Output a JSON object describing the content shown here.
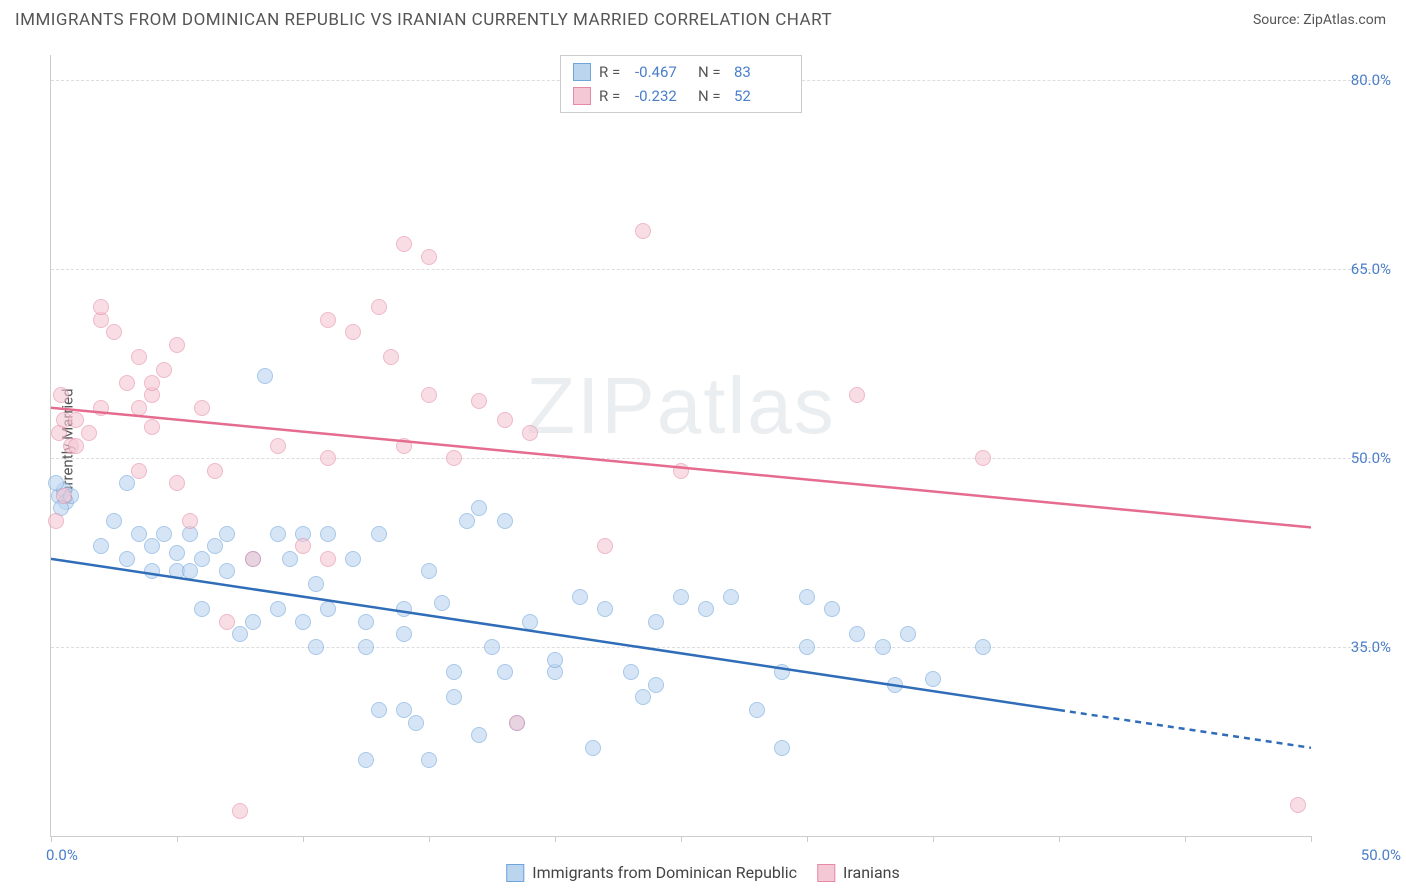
{
  "header": {
    "title": "IMMIGRANTS FROM DOMINICAN REPUBLIC VS IRANIAN CURRENTLY MARRIED CORRELATION CHART",
    "source_label": "Source: ",
    "source_name": "ZipAtlas.com"
  },
  "watermark": "ZIPatlas",
  "chart": {
    "type": "scatter",
    "ylabel": "Currently Married",
    "xlim": [
      0,
      50
    ],
    "ylim": [
      20,
      82
    ],
    "yticks": [
      35.0,
      50.0,
      65.0,
      80.0
    ],
    "ytick_labels": [
      "35.0%",
      "50.0%",
      "65.0%",
      "80.0%"
    ],
    "xticks": [
      0,
      5,
      10,
      15,
      20,
      25,
      30,
      35,
      40,
      45,
      50
    ],
    "xlabel_min": "0.0%",
    "xlabel_max": "50.0%",
    "background_color": "#ffffff",
    "grid_color": "#dddddd",
    "axis_color": "#cccccc",
    "series": [
      {
        "id": "dominican",
        "name": "Immigrants from Dominican Republic",
        "marker_fill": "#bcd5ef",
        "marker_stroke": "#6fa4dd",
        "marker_fill_opacity": 0.6,
        "marker_size": 16,
        "line_color": "#2f6db8",
        "line_width": 2.5,
        "R": "-0.467",
        "N": "83",
        "regression": {
          "x1": 0,
          "y1": 42,
          "x2": 40,
          "y2": 30,
          "dash_x2": 50,
          "dash_y2": 27
        },
        "points": [
          [
            0.3,
            47
          ],
          [
            0.5,
            47.5
          ],
          [
            0.6,
            46.5
          ],
          [
            0.8,
            47
          ],
          [
            0.4,
            46
          ],
          [
            0.2,
            48
          ],
          [
            2,
            43
          ],
          [
            2.5,
            45
          ],
          [
            3,
            42
          ],
          [
            3.5,
            44
          ],
          [
            3,
            48
          ],
          [
            4,
            41
          ],
          [
            4,
            43
          ],
          [
            4.5,
            44
          ],
          [
            5,
            41
          ],
          [
            5,
            42.5
          ],
          [
            5.5,
            41
          ],
          [
            5.5,
            44
          ],
          [
            6,
            42
          ],
          [
            6,
            38
          ],
          [
            6.5,
            43
          ],
          [
            7,
            44
          ],
          [
            7,
            41
          ],
          [
            7.5,
            36
          ],
          [
            8,
            37
          ],
          [
            8,
            42
          ],
          [
            8.5,
            56.5
          ],
          [
            9,
            38
          ],
          [
            9,
            44
          ],
          [
            9.5,
            42
          ],
          [
            10,
            44
          ],
          [
            10,
            37
          ],
          [
            10.5,
            40
          ],
          [
            10.5,
            35
          ],
          [
            11,
            38
          ],
          [
            11,
            44
          ],
          [
            12,
            42
          ],
          [
            12.5,
            37
          ],
          [
            12.5,
            35
          ],
          [
            12.5,
            26
          ],
          [
            13,
            44
          ],
          [
            13,
            30
          ],
          [
            14,
            36
          ],
          [
            14,
            38
          ],
          [
            14,
            30
          ],
          [
            14.5,
            29
          ],
          [
            15,
            41
          ],
          [
            15,
            26
          ],
          [
            15.5,
            38.5
          ],
          [
            16,
            31
          ],
          [
            16,
            33
          ],
          [
            16.5,
            45
          ],
          [
            17,
            28
          ],
          [
            17,
            46
          ],
          [
            17.5,
            35
          ],
          [
            18,
            45
          ],
          [
            18,
            33
          ],
          [
            18.5,
            29
          ],
          [
            19,
            37
          ],
          [
            20,
            33
          ],
          [
            20,
            34
          ],
          [
            21,
            39
          ],
          [
            21.5,
            27
          ],
          [
            22,
            38
          ],
          [
            23,
            33
          ],
          [
            23.5,
            31
          ],
          [
            24,
            37
          ],
          [
            24,
            32
          ],
          [
            25,
            39
          ],
          [
            26,
            38
          ],
          [
            27,
            39
          ],
          [
            28,
            30
          ],
          [
            29,
            33
          ],
          [
            29,
            27
          ],
          [
            30,
            39
          ],
          [
            30,
            35
          ],
          [
            31,
            38
          ],
          [
            32,
            36
          ],
          [
            33,
            35
          ],
          [
            33.5,
            32
          ],
          [
            34,
            36
          ],
          [
            35,
            32.5
          ],
          [
            37,
            35
          ]
        ]
      },
      {
        "id": "iranian",
        "name": "Iranians",
        "marker_fill": "#f4c8d4",
        "marker_stroke": "#e68aa6",
        "marker_fill_opacity": 0.6,
        "marker_size": 16,
        "line_color": "#e56b8f",
        "line_width": 2.5,
        "R": "-0.232",
        "N": "52",
        "regression": {
          "x1": 0,
          "y1": 54,
          "x2": 50,
          "y2": 44.5
        },
        "points": [
          [
            0.3,
            52
          ],
          [
            0.5,
            53
          ],
          [
            0.8,
            51
          ],
          [
            0.5,
            47
          ],
          [
            0.2,
            45
          ],
          [
            0.4,
            55
          ],
          [
            1,
            53
          ],
          [
            1,
            51
          ],
          [
            1.5,
            52
          ],
          [
            2,
            54
          ],
          [
            2,
            61
          ],
          [
            2,
            62
          ],
          [
            2.5,
            60
          ],
          [
            3,
            56
          ],
          [
            3.5,
            58
          ],
          [
            3.5,
            54
          ],
          [
            3.5,
            49
          ],
          [
            4,
            55
          ],
          [
            4,
            56
          ],
          [
            4,
            52.5
          ],
          [
            4.5,
            57
          ],
          [
            5,
            59
          ],
          [
            5,
            48
          ],
          [
            5.5,
            45
          ],
          [
            6,
            54
          ],
          [
            6.5,
            49
          ],
          [
            7,
            37
          ],
          [
            7.5,
            22
          ],
          [
            8,
            42
          ],
          [
            9,
            51
          ],
          [
            10,
            43
          ],
          [
            11,
            50
          ],
          [
            11,
            61
          ],
          [
            11,
            42
          ],
          [
            12,
            60
          ],
          [
            13,
            62
          ],
          [
            13.5,
            58
          ],
          [
            14,
            67
          ],
          [
            14,
            51
          ],
          [
            15,
            66
          ],
          [
            15,
            55
          ],
          [
            16,
            50
          ],
          [
            17,
            54.5
          ],
          [
            18,
            53
          ],
          [
            18.5,
            29
          ],
          [
            19,
            52
          ],
          [
            22,
            43
          ],
          [
            23.5,
            68
          ],
          [
            25,
            49
          ],
          [
            32,
            55
          ],
          [
            37,
            50
          ],
          [
            49.5,
            22.5
          ]
        ]
      }
    ]
  },
  "legend_top_format": {
    "r_label": "R =",
    "n_label": "N ="
  }
}
